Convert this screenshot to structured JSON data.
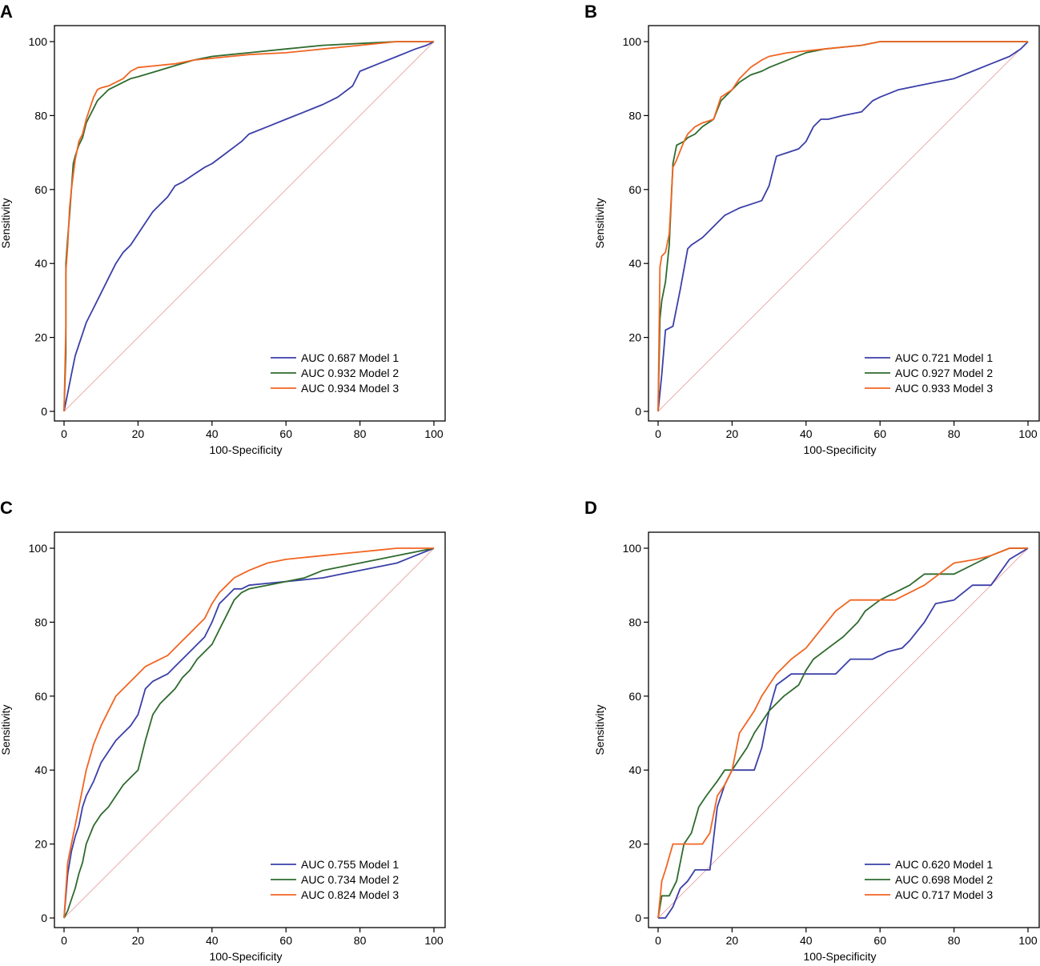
{
  "colors": {
    "model1": "#3b3fa8",
    "model2": "#2e6b2e",
    "model3": "#f26522",
    "reference": "#e8a0a0"
  },
  "chart_data": [
    {
      "panel": "A",
      "type": "line",
      "xlabel": "100-Specificity",
      "ylabel": "Sensitivity",
      "xlim": [
        0,
        100
      ],
      "ylim": [
        0,
        100
      ],
      "xticks": [
        0,
        20,
        40,
        60,
        80,
        100
      ],
      "yticks": [
        0,
        20,
        40,
        60,
        80,
        100
      ],
      "legend_position": "bottom-right",
      "series": [
        {
          "name": "Model 1",
          "legend": "AUC 0.687 Model 1",
          "color_key": "model1",
          "x": [
            0,
            1,
            2,
            3,
            4,
            5,
            6,
            7,
            8,
            10,
            12,
            14,
            16,
            18,
            20,
            22,
            24,
            26,
            28,
            30,
            32,
            35,
            38,
            40,
            44,
            48,
            50,
            55,
            60,
            65,
            70,
            74,
            78,
            80,
            85,
            90,
            95,
            98,
            100
          ],
          "y": [
            0,
            5,
            10,
            15,
            18,
            21,
            24,
            26,
            28,
            32,
            36,
            40,
            43,
            45,
            48,
            51,
            54,
            56,
            58,
            61,
            62,
            64,
            66,
            67,
            70,
            73,
            75,
            77,
            79,
            81,
            83,
            85,
            88,
            92,
            94,
            96,
            98,
            99,
            100
          ]
        },
        {
          "name": "Model 2",
          "legend": "AUC 0.932 Model 2",
          "color_key": "model2",
          "x": [
            0,
            0.5,
            0.5,
            1,
            1.5,
            2,
            2.5,
            3,
            4,
            5,
            6,
            7,
            8,
            9,
            10,
            12,
            14,
            16,
            18,
            20,
            25,
            30,
            35,
            40,
            45,
            50,
            60,
            70,
            80,
            90,
            100
          ],
          "y": [
            0,
            16,
            40,
            47,
            53,
            60,
            67,
            69,
            72,
            74,
            78,
            80,
            82,
            84,
            85,
            87,
            88,
            89,
            90,
            90.5,
            92,
            93.5,
            95,
            96,
            96.5,
            97,
            98,
            99,
            99.5,
            100,
            100
          ]
        },
        {
          "name": "Model 3",
          "legend": "AUC 0.934 Model 3",
          "color_key": "model3",
          "x": [
            0,
            0.5,
            0.5,
            1,
            1.5,
            2,
            2.5,
            3,
            4,
            5,
            6,
            7,
            8,
            9,
            10,
            12,
            14,
            16,
            18,
            20,
            25,
            30,
            35,
            40,
            45,
            50,
            60,
            70,
            80,
            90,
            100
          ],
          "y": [
            0,
            23,
            38,
            45,
            55,
            60,
            64,
            68,
            73,
            75,
            79,
            82,
            85,
            87,
            87.5,
            88,
            89,
            90,
            92,
            93,
            93.5,
            94,
            95,
            95.5,
            96,
            96.5,
            97,
            98,
            99,
            100,
            100
          ]
        }
      ]
    },
    {
      "panel": "B",
      "type": "line",
      "xlabel": "100-Specificity",
      "ylabel": "Sensitivity",
      "xlim": [
        0,
        100
      ],
      "ylim": [
        0,
        100
      ],
      "xticks": [
        0,
        20,
        40,
        60,
        80,
        100
      ],
      "yticks": [
        0,
        20,
        40,
        60,
        80,
        100
      ],
      "legend_position": "bottom-right",
      "series": [
        {
          "name": "Model 1",
          "legend": "AUC 0.721 Model 1",
          "color_key": "model1",
          "x": [
            0,
            1,
            2,
            4,
            5,
            6,
            8,
            9,
            12,
            14,
            16,
            18,
            20,
            22,
            25,
            28,
            30,
            32,
            35,
            38,
            40,
            42,
            44,
            46,
            50,
            55,
            58,
            60,
            65,
            70,
            75,
            80,
            85,
            90,
            95,
            98,
            100
          ],
          "y": [
            0,
            10,
            22,
            23,
            28,
            33,
            44,
            45,
            47,
            49,
            51,
            53,
            54,
            55,
            56,
            57,
            61,
            69,
            70,
            71,
            73,
            77,
            79,
            79,
            80,
            81,
            84,
            85,
            87,
            88,
            89,
            90,
            92,
            94,
            96,
            98,
            100
          ]
        },
        {
          "name": "Model 2",
          "legend": "AUC 0.927 Model 2",
          "color_key": "model2",
          "x": [
            0,
            0.5,
            1,
            2,
            3,
            4,
            5,
            7,
            8,
            10,
            12,
            15,
            17,
            20,
            22,
            25,
            28,
            30,
            35,
            40,
            45,
            50,
            55,
            60,
            70,
            80,
            90,
            100
          ],
          "y": [
            0,
            25,
            30,
            35,
            45,
            67,
            72,
            73,
            74,
            75,
            77,
            79,
            84,
            87,
            89,
            91,
            92,
            93,
            95,
            97,
            98,
            98.5,
            99,
            100,
            100,
            100,
            100,
            100
          ]
        },
        {
          "name": "Model 3",
          "legend": "AUC 0.933 Model 3",
          "color_key": "model3",
          "x": [
            0,
            0.5,
            1,
            2,
            3,
            4,
            5,
            7,
            8,
            10,
            12,
            15,
            17,
            20,
            22,
            25,
            28,
            30,
            35,
            40,
            45,
            50,
            55,
            60,
            70,
            80,
            90,
            100
          ],
          "y": [
            0,
            39,
            42,
            43,
            48,
            66,
            68,
            73,
            75,
            77,
            78,
            79,
            85,
            87,
            90,
            93,
            95,
            96,
            97,
            97.5,
            98,
            98.5,
            99,
            100,
            100,
            100,
            100,
            100
          ]
        }
      ]
    },
    {
      "panel": "C",
      "type": "line",
      "xlabel": "100-Specificity",
      "ylabel": "Sensitivity",
      "xlim": [
        0,
        100
      ],
      "ylim": [
        0,
        100
      ],
      "xticks": [
        0,
        20,
        40,
        60,
        80,
        100
      ],
      "yticks": [
        0,
        20,
        40,
        60,
        80,
        100
      ],
      "legend_position": "bottom-right",
      "series": [
        {
          "name": "Model 1",
          "legend": "AUC 0.755 Model 1",
          "color_key": "model1",
          "x": [
            0,
            1,
            2,
            3,
            4,
            5,
            6,
            8,
            10,
            12,
            14,
            16,
            18,
            20,
            22,
            24,
            26,
            28,
            30,
            32,
            34,
            36,
            38,
            40,
            42,
            44,
            46,
            48,
            50,
            55,
            60,
            65,
            70,
            75,
            80,
            85,
            90,
            95,
            100
          ],
          "y": [
            0,
            12,
            18,
            22,
            25,
            30,
            33,
            37,
            42,
            45,
            48,
            50,
            52,
            55,
            62,
            64,
            65,
            66,
            68,
            70,
            72,
            74,
            76,
            80,
            85,
            87,
            89,
            89,
            90,
            90.5,
            91,
            91.5,
            92,
            93,
            94,
            95,
            96,
            98,
            100
          ]
        },
        {
          "name": "Model 2",
          "legend": "AUC 0.734 Model 2",
          "color_key": "model2",
          "x": [
            0,
            1,
            2,
            3,
            4,
            5,
            6,
            8,
            10,
            12,
            14,
            16,
            18,
            20,
            22,
            24,
            26,
            28,
            30,
            32,
            34,
            36,
            38,
            40,
            42,
            44,
            46,
            48,
            50,
            55,
            60,
            65,
            70,
            75,
            80,
            85,
            90,
            95,
            100
          ],
          "y": [
            0,
            2,
            5,
            8,
            12,
            15,
            20,
            25,
            28,
            30,
            33,
            36,
            38,
            40,
            48,
            55,
            58,
            60,
            62,
            65,
            67,
            70,
            72,
            74,
            78,
            82,
            86,
            88,
            89,
            90,
            91,
            92,
            94,
            95,
            96,
            97,
            98,
            99,
            100
          ]
        },
        {
          "name": "Model 3",
          "legend": "AUC 0.824 Model 3",
          "color_key": "model3",
          "x": [
            0,
            1,
            2,
            3,
            4,
            5,
            6,
            8,
            10,
            12,
            14,
            16,
            18,
            20,
            22,
            24,
            26,
            28,
            30,
            32,
            34,
            36,
            38,
            40,
            42,
            44,
            46,
            48,
            50,
            55,
            60,
            65,
            70,
            75,
            80,
            85,
            90,
            95,
            100
          ],
          "y": [
            0,
            15,
            20,
            25,
            30,
            35,
            40,
            47,
            52,
            56,
            60,
            62,
            64,
            66,
            68,
            69,
            70,
            71,
            73,
            75,
            77,
            79,
            81,
            85,
            88,
            90,
            92,
            93,
            94,
            96,
            97,
            97.5,
            98,
            98.5,
            99,
            99.5,
            100,
            100,
            100
          ]
        }
      ]
    },
    {
      "panel": "D",
      "type": "line",
      "xlabel": "100-Specificity",
      "ylabel": "Sensitivity",
      "xlim": [
        0,
        100
      ],
      "ylim": [
        0,
        100
      ],
      "xticks": [
        0,
        20,
        40,
        60,
        80,
        100
      ],
      "yticks": [
        0,
        20,
        40,
        60,
        80,
        100
      ],
      "legend_position": "bottom-right",
      "series": [
        {
          "name": "Model 1",
          "legend": "AUC 0.620 Model 1",
          "color_key": "model1",
          "x": [
            0,
            2,
            4,
            6,
            8,
            10,
            14,
            16,
            18,
            20,
            24,
            26,
            28,
            30,
            32,
            36,
            40,
            44,
            48,
            52,
            58,
            62,
            66,
            68,
            72,
            75,
            80,
            85,
            90,
            95,
            100
          ],
          "y": [
            0,
            0,
            3,
            8,
            10,
            13,
            13,
            30,
            36,
            40,
            40,
            40,
            46,
            56,
            63,
            66,
            66,
            66,
            66,
            70,
            70,
            72,
            73,
            75,
            80,
            85,
            86,
            90,
            90,
            97,
            100
          ]
        },
        {
          "name": "Model 2",
          "legend": "AUC 0.698 Model 2",
          "color_key": "model2",
          "x": [
            0,
            1,
            3,
            5,
            7,
            9,
            11,
            13,
            16,
            18,
            20,
            22,
            24,
            26,
            28,
            30,
            34,
            38,
            40,
            42,
            46,
            50,
            54,
            56,
            60,
            64,
            68,
            72,
            76,
            80,
            86,
            90,
            95,
            100
          ],
          "y": [
            0,
            6,
            6,
            10,
            20,
            23,
            30,
            33,
            37,
            40,
            40,
            43,
            46,
            50,
            53,
            56,
            60,
            63,
            67,
            70,
            73,
            76,
            80,
            83,
            86,
            88,
            90,
            93,
            93,
            93,
            96,
            98,
            100,
            100
          ]
        },
        {
          "name": "Model 3",
          "legend": "AUC 0.717 Model 3",
          "color_key": "model3",
          "x": [
            0,
            1,
            2,
            4,
            6,
            8,
            10,
            12,
            14,
            16,
            18,
            20,
            22,
            24,
            26,
            28,
            30,
            32,
            36,
            40,
            44,
            48,
            52,
            56,
            60,
            64,
            68,
            72,
            76,
            80,
            86,
            90,
            95,
            100
          ],
          "y": [
            0,
            10,
            13,
            20,
            20,
            20,
            20,
            20,
            23,
            33,
            36,
            40,
            50,
            53,
            56,
            60,
            63,
            66,
            70,
            73,
            78,
            83,
            86,
            86,
            86,
            86,
            88,
            90,
            93,
            96,
            97,
            98,
            100,
            100
          ]
        }
      ]
    }
  ]
}
